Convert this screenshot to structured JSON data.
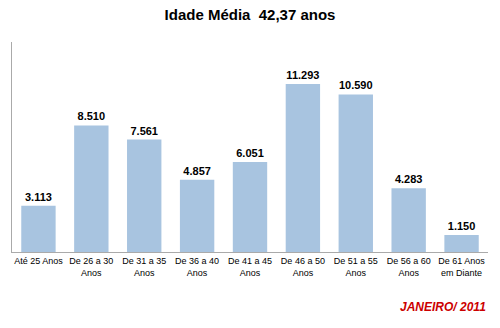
{
  "chart_data": {
    "type": "bar",
    "title": "Idade Média  42,37 anos",
    "categories": [
      "Até 25 Anos",
      "De 26 a 30\nAnos",
      "De 31 a 35\nAnos",
      "De 36 a 40\nAnos",
      "De 41 a 45\nAnos",
      "De 46 a 50\nAnos",
      "De 51 a 55\nAnos",
      "De 56 a 60\nAnos",
      "De 61 Anos\nem Diante"
    ],
    "values": [
      3113,
      8510,
      7561,
      4857,
      6051,
      11293,
      10590,
      4283,
      1150
    ],
    "value_labels": [
      "3.113",
      "8.510",
      "7.561",
      "4.857",
      "6.051",
      "11.293",
      "10.590",
      "4.283",
      "1.150"
    ],
    "color": "#a8c4e0",
    "ylim": [
      0,
      14116.25
    ],
    "grid": false,
    "data_labels": true,
    "tick_labels": "x",
    "annotations": [
      {
        "text": "JANEIRO/ 2011",
        "color": "#cc0000"
      }
    ]
  }
}
